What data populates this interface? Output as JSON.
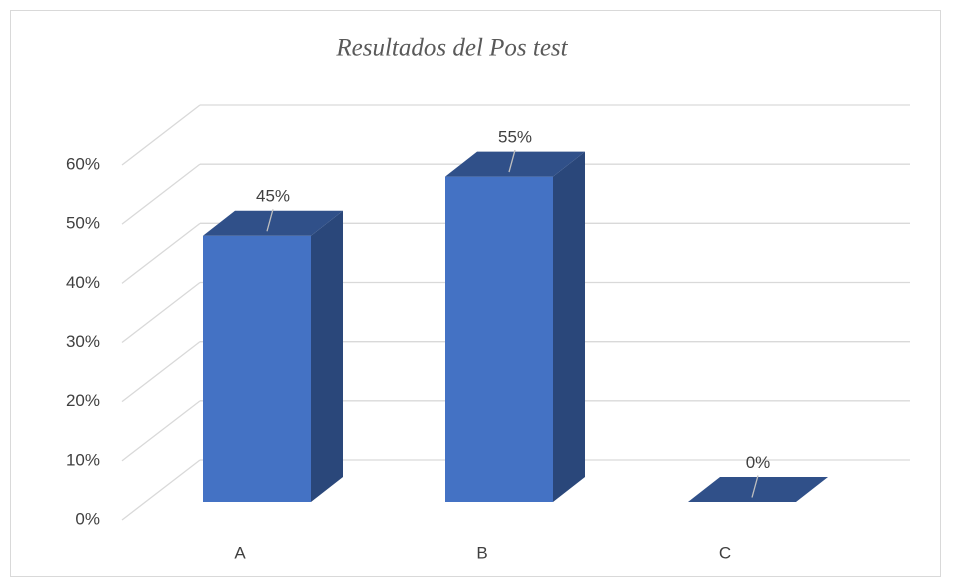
{
  "chart_data": {
    "type": "bar3d",
    "title": "Resultados del Pos test",
    "categories": [
      "A",
      "B",
      "C"
    ],
    "values": [
      45,
      55,
      0
    ],
    "value_labels": [
      "45%",
      "55%",
      "0%"
    ],
    "color": "#4472c4",
    "ylim": [
      0,
      60
    ],
    "yticks": [
      {
        "value": 0,
        "label": "0%"
      },
      {
        "value": 10,
        "label": "10%"
      },
      {
        "value": 20,
        "label": "20%"
      },
      {
        "value": 30,
        "label": "30%"
      },
      {
        "value": 40,
        "label": "40%"
      },
      {
        "value": 50,
        "label": "50%"
      },
      {
        "value": 60,
        "label": "60%"
      }
    ],
    "grid": true
  }
}
